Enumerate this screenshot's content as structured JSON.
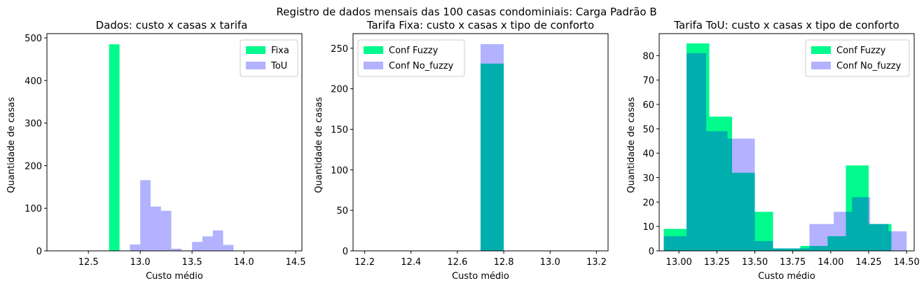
{
  "suptitle": "Registro de dados mensais das 100 casas condominiais: Carga Padrão B",
  "colors": {
    "primary": "#00FA8C",
    "secondary": "#B2B2FF",
    "overlap": "#00ACB6"
  },
  "chart_data": [
    {
      "type": "bar",
      "title": "Dados: custo x casas x tarifa",
      "xlabel": "Custo médio",
      "ylabel": "Quantidade de casas",
      "xlim": [
        12.1,
        14.56
      ],
      "ylim": [
        0,
        510
      ],
      "xticks": [
        "12.5",
        "13.0",
        "13.5",
        "14.0",
        "14.5"
      ],
      "xtick_values": [
        12.5,
        13.0,
        13.5,
        14.0,
        14.5
      ],
      "yticks": [
        "0",
        "100",
        "200",
        "300",
        "400",
        "500"
      ],
      "ytick_values": [
        0,
        100,
        200,
        300,
        400,
        500
      ],
      "legend": "top-right",
      "series": [
        {
          "name": "Fixa",
          "color": "#00FA8C",
          "opacity": 1,
          "bins": [
            {
              "x0": 12.7,
              "x1": 12.8,
              "value": 485
            }
          ]
        },
        {
          "name": "ToU",
          "color": "#0000FF",
          "opacity": 0.3,
          "bins": [
            {
              "x0": 12.9,
              "x1": 13.0,
              "value": 15
            },
            {
              "x0": 13.0,
              "x1": 13.1,
              "value": 166
            },
            {
              "x0": 13.1,
              "x1": 13.2,
              "value": 104
            },
            {
              "x0": 13.2,
              "x1": 13.3,
              "value": 94
            },
            {
              "x0": 13.3,
              "x1": 13.4,
              "value": 5
            },
            {
              "x0": 13.4,
              "x1": 13.5,
              "value": 1
            },
            {
              "x0": 13.5,
              "x1": 13.6,
              "value": 21
            },
            {
              "x0": 13.6,
              "x1": 13.7,
              "value": 34
            },
            {
              "x0": 13.7,
              "x1": 13.8,
              "value": 48
            },
            {
              "x0": 13.8,
              "x1": 13.9,
              "value": 14
            }
          ]
        }
      ]
    },
    {
      "type": "bar",
      "title": "Tarifa Fixa: custo x casas x tipo de conforto",
      "xlabel": "Custo médio",
      "ylabel": "Quantidade de casas",
      "xlim": [
        12.15,
        13.25
      ],
      "ylim": [
        0,
        268
      ],
      "xticks": [
        "12.2",
        "12.4",
        "12.6",
        "12.8",
        "13.0",
        "13.2"
      ],
      "xtick_values": [
        12.2,
        12.4,
        12.6,
        12.8,
        13.0,
        13.2
      ],
      "yticks": [
        "0",
        "50",
        "100",
        "150",
        "200",
        "250"
      ],
      "ytick_values": [
        0,
        50,
        100,
        150,
        200,
        250
      ],
      "legend": "top-left",
      "series": [
        {
          "name": "Conf Fuzzy",
          "color": "#00FA8C",
          "opacity": 1,
          "bins": [
            {
              "x0": 12.7,
              "x1": 12.8,
              "value": 231
            }
          ]
        },
        {
          "name": "Conf No_fuzzy",
          "color": "#0000FF",
          "opacity": 0.3,
          "bins": [
            {
              "x0": 12.7,
              "x1": 12.8,
              "value": 255
            }
          ]
        }
      ]
    },
    {
      "type": "bar",
      "title": "Tarifa ToU: custo x casas x tipo de conforto",
      "xlabel": "Custo médio",
      "ylabel": "Quantidade de casas",
      "xlim": [
        12.87,
        14.55
      ],
      "ylim": [
        0,
        89
      ],
      "xticks": [
        "13.00",
        "13.25",
        "13.50",
        "13.75",
        "14.00",
        "14.25",
        "14.50"
      ],
      "xtick_values": [
        13.0,
        13.25,
        13.5,
        13.75,
        14.0,
        14.25,
        14.5
      ],
      "yticks": [
        "0",
        "10",
        "20",
        "30",
        "40",
        "50",
        "60",
        "70",
        "80"
      ],
      "ytick_values": [
        0,
        10,
        20,
        30,
        40,
        50,
        60,
        70,
        80
      ],
      "legend": "top-right",
      "series": [
        {
          "name": "Conf Fuzzy",
          "color": "#00FA8C",
          "opacity": 1,
          "bins": [
            {
              "x0": 12.9,
              "x1": 13.05,
              "value": 9
            },
            {
              "x0": 13.05,
              "x1": 13.2,
              "value": 85
            },
            {
              "x0": 13.2,
              "x1": 13.35,
              "value": 55
            },
            {
              "x0": 13.35,
              "x1": 13.5,
              "value": 32
            },
            {
              "x0": 13.5,
              "x1": 13.62,
              "value": 16
            },
            {
              "x0": 13.62,
              "x1": 13.72,
              "value": 1
            },
            {
              "x0": 13.72,
              "x1": 13.8,
              "value": 1
            },
            {
              "x0": 13.8,
              "x1": 13.88,
              "value": 2
            },
            {
              "x0": 13.88,
              "x1": 13.98,
              "value": 2
            },
            {
              "x0": 13.98,
              "x1": 14.1,
              "value": 6
            },
            {
              "x0": 14.1,
              "x1": 14.25,
              "value": 35
            },
            {
              "x0": 14.25,
              "x1": 14.35,
              "value": 11
            },
            {
              "x0": 14.35,
              "x1": 14.4,
              "value": 11
            }
          ]
        },
        {
          "name": "Conf No_fuzzy",
          "color": "#0000FF",
          "opacity": 0.3,
          "bins": [
            {
              "x0": 12.9,
              "x1": 13.05,
              "value": 6
            },
            {
              "x0": 13.05,
              "x1": 13.18,
              "value": 81
            },
            {
              "x0": 13.18,
              "x1": 13.32,
              "value": 49
            },
            {
              "x0": 13.32,
              "x1": 13.5,
              "value": 46
            },
            {
              "x0": 13.5,
              "x1": 13.62,
              "value": 4
            },
            {
              "x0": 13.62,
              "x1": 13.68,
              "value": 1
            },
            {
              "x0": 13.68,
              "x1": 13.86,
              "value": 1
            },
            {
              "x0": 13.86,
              "x1": 14.02,
              "value": 11
            },
            {
              "x0": 14.02,
              "x1": 14.14,
              "value": 16
            },
            {
              "x0": 14.14,
              "x1": 14.26,
              "value": 22
            },
            {
              "x0": 14.26,
              "x1": 14.38,
              "value": 11
            },
            {
              "x0": 14.38,
              "x1": 14.5,
              "value": 8
            }
          ]
        }
      ]
    }
  ]
}
